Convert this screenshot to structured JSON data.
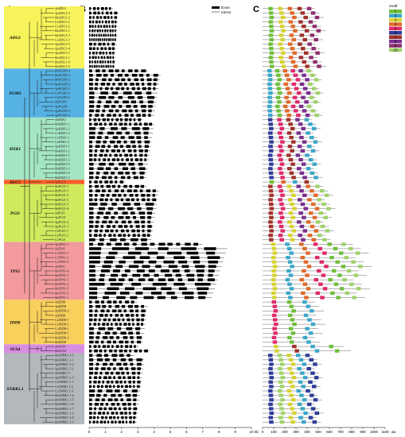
{
  "panels": {
    "a": "A",
    "b": "B",
    "c": "C"
  },
  "groups": [
    {
      "name": "ADG1",
      "color": "#f7f35a",
      "genes": [
        "AtADG1",
        "ApADG1-2",
        "BnADG1-2",
        "CsADG1-2",
        "CcADG1-2",
        "BnADG1-1",
        "BnADG1-3",
        "CsADG1-3",
        "ApADG1-3",
        "ApADG1-4",
        "ApADG1-1",
        "BnADG1-1",
        "BnADG1-4",
        "BnADG1-5"
      ]
    },
    {
      "name": "PGM3",
      "color": "#56b2e3",
      "genes": [
        "BnPGM3-2",
        "BnPGM3-1",
        "BnPGM3-2",
        "BnPGM3-3",
        "ApPGM3-1",
        "CsPGM3-1",
        "CsPGM3-2",
        "AtPGM3",
        "ApPGM3",
        "ApPGM3-1",
        "ApPGM3-3"
      ]
    },
    {
      "name": "HXK1",
      "color": "#a4e6c3",
      "genes": [
        "AtHXK1",
        "BnHXK1-1",
        "ApHXK1-2",
        "CcHXK1-2",
        "CcHXK1-1",
        "CsHXK1-2",
        "ApHXK1-1",
        "BnHXK1-2",
        "BnHXK1-1",
        "BnHXK1-3",
        "BnHXK1-5",
        "BnHXK1-2",
        "BnHXK1-4",
        "BnHXK1-3"
      ]
    },
    {
      "name": "SUC5",
      "color": "#f7602c",
      "genes": [
        "AtSUC5"
      ]
    },
    {
      "name": "PGI1",
      "color": "#cfea5c",
      "genes": [
        "BnPGI1-1",
        "BnPGI1-3",
        "BnPGI1-2",
        "BnPGI1-5",
        "BnPGI1-3",
        "BnPGI1-4",
        "AtPGI1",
        "ApPGI1",
        "ApPGI1-2",
        "ApPGI1-1",
        "CsPGI1-1",
        "CsPGI1-2",
        "CcPGI1"
      ]
    },
    {
      "name": "TPS1",
      "color": "#f29a9e",
      "genes": [
        "ApTPS1-1",
        "AtTPS1",
        "CsTPS1-1",
        "CsTPS1-2",
        "CcTPS1-3",
        "AtTPS1",
        "BnTPS1-4",
        "BnTPS1-3",
        "BnTPS1-1",
        "BnTPS1-2",
        "BnTPS1-5",
        "BnTPS1-3",
        "BnTPS1-1"
      ]
    },
    {
      "name": "IDD8",
      "color": "#f8d05c",
      "genes": [
        "AtIDD8",
        "ApIDD8",
        "ApIDD8-2",
        "AtIDD8",
        "CsIDD8-1",
        "CsIDD8-2",
        "CcIDD8-1",
        "BnIDD8-1",
        "BnIDD8-2",
        "BnIDD8"
      ]
    },
    {
      "name": "SUS4",
      "color": "#d78ee0",
      "genes": [
        "AtSUS4",
        "BnSUS4"
      ]
    },
    {
      "name": "SNRK1.1",
      "color": "#b3b8bd",
      "genes": [
        "BnSNRK1.1-3",
        "BnSNRK1.1-1",
        "ApSNRK1.1-2",
        "ApSNRK1.1-1",
        "AtSNRK1.1",
        "ApSNRK1.1-3",
        "CsSNRK1.1-1",
        "CsSNRK1.1-2",
        "CsSNRK1.1-3",
        "BnSNRK1.1-4",
        "BnSNRK1.1-5",
        "BnSNRK1.1-6",
        "BnSNRK1.1-7",
        "BnSNRK1.1-2",
        "BnSNRK1.1-8",
        "BnSNRK1.1-3"
      ]
    }
  ],
  "gene_structure": {
    "legend": {
      "exon": "Exon",
      "intron": "Intron"
    },
    "axis_ticks": [
      "0",
      "1",
      "2",
      "3",
      "4",
      "5",
      "6",
      "7",
      "8",
      "9",
      "10"
    ],
    "axis_unit": "kb",
    "axis_max": 10,
    "exon_color": "#000000",
    "intron_color": "#000000"
  },
  "motifs": {
    "legend_title": "motif",
    "items": [
      {
        "label": "1",
        "color": "#6fbf3a"
      },
      {
        "label": "2",
        "color": "#3aa7c9"
      },
      {
        "label": "3",
        "color": "#d6d232"
      },
      {
        "label": "4",
        "color": "#e06a2b"
      },
      {
        "label": "5",
        "color": "#e02a6c"
      },
      {
        "label": "6",
        "color": "#2f3d9a"
      },
      {
        "label": "7",
        "color": "#a0322a"
      },
      {
        "label": "8",
        "color": "#7a2f8f"
      },
      {
        "label": "9",
        "color": "#8f2f72"
      },
      {
        "label": "10",
        "color": "#9fd36a"
      }
    ],
    "axis_ticks": [
      "0",
      "100",
      "200",
      "300",
      "400",
      "500",
      "600",
      "700",
      "800",
      "900",
      "1000",
      "1100"
    ],
    "axis_unit": "aa",
    "axis_max": 1100
  }
}
